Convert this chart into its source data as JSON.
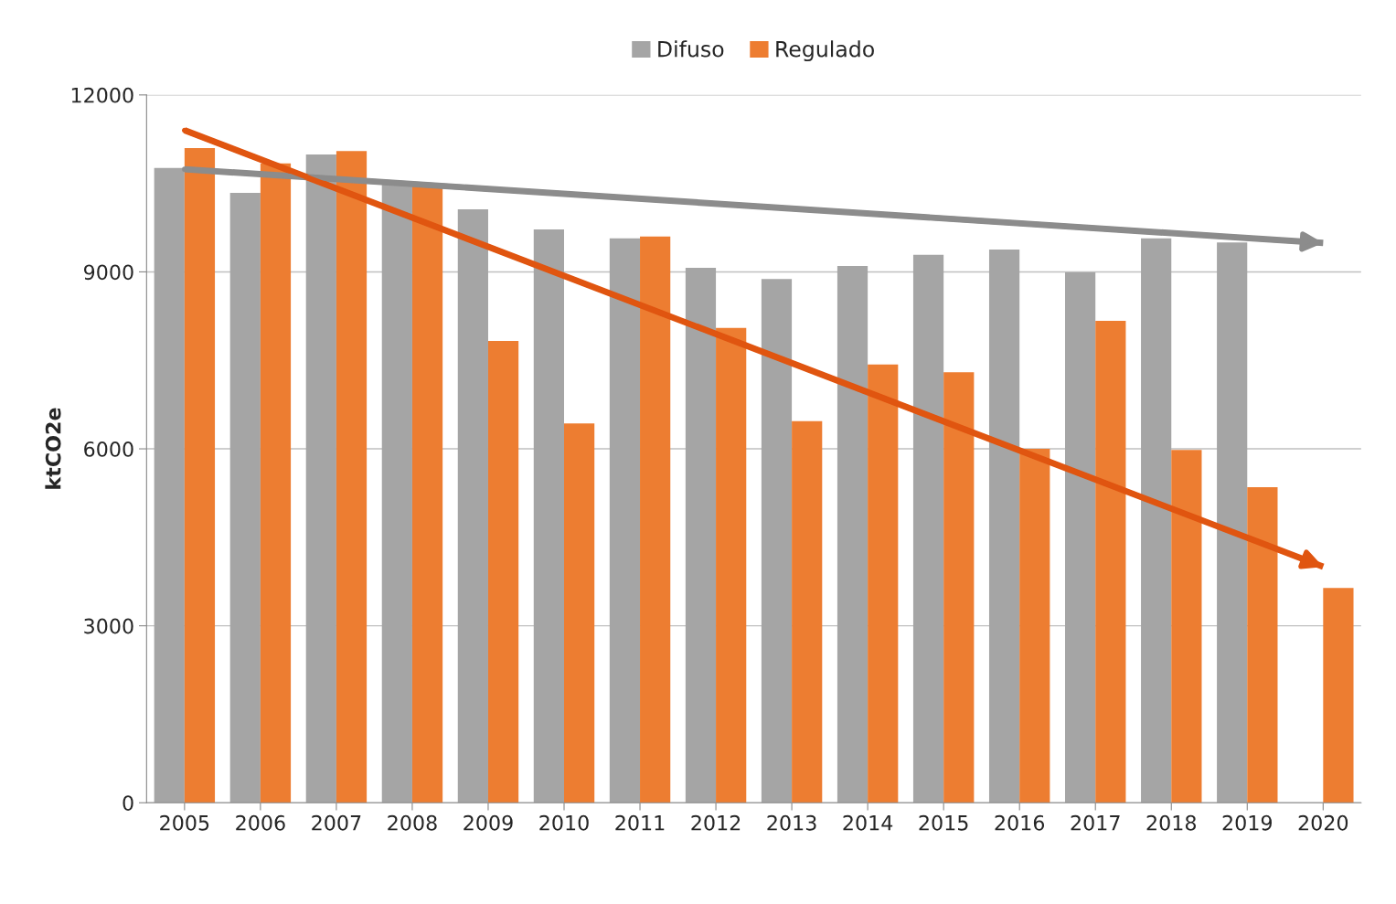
{
  "chart_data": {
    "type": "bar",
    "ylabel": "ktCO2e",
    "categories": [
      "2005",
      "2006",
      "2007",
      "2008",
      "2009",
      "2010",
      "2011",
      "2012",
      "2013",
      "2014",
      "2015",
      "2016",
      "2017",
      "2018",
      "2019",
      "2020"
    ],
    "series": [
      {
        "name": "Difuso",
        "color": "#a5a5a5",
        "values": [
          10760,
          10340,
          10990,
          10510,
          10060,
          9720,
          9570,
          9070,
          8880,
          9100,
          9290,
          9380,
          8990,
          9570,
          9500,
          null
        ]
      },
      {
        "name": "Regulado",
        "color": "#ed7d31",
        "values": [
          11100,
          10840,
          11050,
          10470,
          7830,
          6430,
          9600,
          8050,
          6470,
          7430,
          7300,
          6000,
          8170,
          5980,
          5350,
          3640
        ]
      },
      {
        "type": "line",
        "color": "#8c8c8c",
        "values": [
          10740,
          null,
          null,
          null,
          null,
          null,
          null,
          null,
          null,
          null,
          null,
          null,
          null,
          null,
          null,
          9490
        ]
      },
      {
        "type": "line",
        "color": "#e05510",
        "values": [
          11400,
          null,
          null,
          null,
          null,
          null,
          null,
          null,
          null,
          null,
          null,
          null,
          null,
          null,
          null,
          4000
        ]
      }
    ],
    "ylim": [
      0,
      12000
    ],
    "yticks": [
      0,
      3000,
      6000,
      9000,
      12000
    ],
    "grid": "y",
    "legend": "top"
  }
}
